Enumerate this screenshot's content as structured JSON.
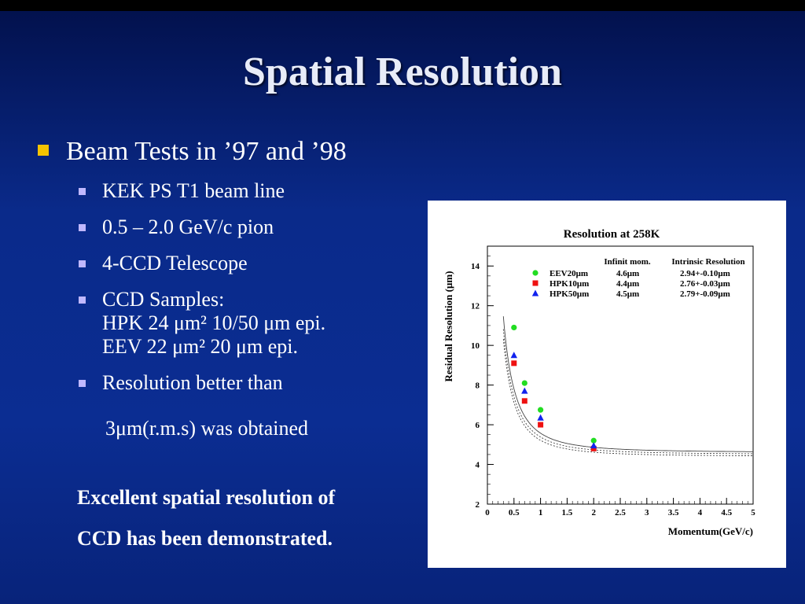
{
  "slide": {
    "title": "Spatial Resolution",
    "main_bullet": "Beam Tests in ’97 and ’98",
    "sub_items": [
      {
        "lines": [
          "KEK PS T1 beam line"
        ]
      },
      {
        "lines": [
          "0.5 – 2.0 GeV/c pion"
        ]
      },
      {
        "lines": [
          "4-CCD Telescope"
        ]
      },
      {
        "lines": [
          "CCD Samples:",
          "HPK 24 μm²  10/50 μm epi.",
          "EEV 22 μm²  20 μm epi."
        ]
      },
      {
        "lines": [
          "Resolution better than"
        ]
      }
    ],
    "continuation": "3μm(r.m.s) was obtained",
    "conclusion_line1": "Excellent spatial resolution of",
    "conclusion_line2": "CCD has been demonstrated.",
    "colors": {
      "bullet_main": "#f5c400",
      "bullet_sub": "#c0b8ff",
      "background": "#0b2d92"
    }
  },
  "chart_data": {
    "type": "scatter",
    "title": "Resolution at 258K",
    "xlabel": "Momentum(GeV/c)",
    "ylabel": "Residual Resolution (μm)",
    "xlim": [
      0,
      5
    ],
    "ylim": [
      2,
      15
    ],
    "x_ticks": [
      "0",
      "0.5",
      "1",
      "1.5",
      "2",
      "2.5",
      "3",
      "3.5",
      "4",
      "4.5",
      "5"
    ],
    "y_ticks": [
      "2",
      "4",
      "6",
      "8",
      "10",
      "12",
      "14"
    ],
    "table_headers": [
      "Infinit mom.",
      "Intrinsic Resolution"
    ],
    "series": [
      {
        "name": "EEV20μm",
        "infinit": "4.6μm",
        "intrinsic": "2.94+-0.10μm",
        "color": "#22dd22",
        "marker": "circle",
        "x": [
          0.5,
          0.7,
          1.0,
          2.0
        ],
        "y": [
          10.9,
          8.1,
          6.75,
          5.2
        ]
      },
      {
        "name": "HPK10μm",
        "infinit": "4.4μm",
        "intrinsic": "2.76+-0.03μm",
        "color": "#ee1111",
        "marker": "square",
        "x": [
          0.5,
          0.7,
          1.0,
          2.0
        ],
        "y": [
          9.1,
          7.2,
          6.0,
          4.8
        ]
      },
      {
        "name": "HPK50μm",
        "infinit": "4.5μm",
        "intrinsic": "2.79+-0.09μm",
        "color": "#1122ee",
        "marker": "triangle",
        "x": [
          0.5,
          0.7,
          1.0,
          2.0
        ],
        "y": [
          9.5,
          7.7,
          6.35,
          4.95
        ]
      }
    ],
    "curves": [
      {
        "infinit": 4.6,
        "k": 3.15,
        "style": "solid"
      },
      {
        "infinit": 4.5,
        "k": 2.95,
        "style": "dotted"
      },
      {
        "infinit": 4.4,
        "k": 2.8,
        "style": "dotted"
      }
    ]
  }
}
